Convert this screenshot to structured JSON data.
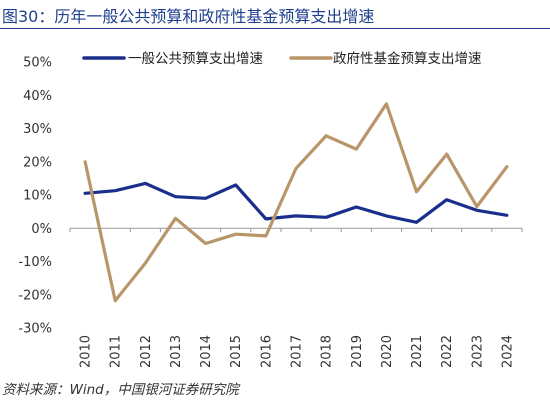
{
  "title": "图30：历年一般公共预算和政府性基金预算支出增速",
  "source": "资料来源：Wind，中国银河证券研究院",
  "chart_data": {
    "type": "line",
    "x": [
      "2010",
      "2011",
      "2012",
      "2013",
      "2014",
      "2015",
      "2016",
      "2017",
      "2018",
      "2019",
      "2020",
      "2021",
      "2022",
      "2023",
      "2024"
    ],
    "series": [
      {
        "name": "一般公共预算支出增速",
        "color": "#1a2f8c",
        "values": [
          10.5,
          11.3,
          13.5,
          9.5,
          9.0,
          13.0,
          2.8,
          3.7,
          3.3,
          6.4,
          3.7,
          1.8,
          8.6,
          5.4,
          3.9
        ]
      },
      {
        "name": "政府性基金预算支出增速",
        "color": "#b8966a",
        "values": [
          20.0,
          -21.8,
          -10.5,
          3.0,
          -4.6,
          -1.8,
          -2.3,
          18.0,
          27.8,
          23.8,
          37.4,
          11.0,
          22.3,
          6.5,
          18.5
        ]
      }
    ],
    "yticks": [
      "50%",
      "40%",
      "30%",
      "20%",
      "10%",
      "0%",
      "-10%",
      "-20%",
      "-30%"
    ],
    "ylim": [
      -30,
      50
    ],
    "legend": "top",
    "grid": false
  }
}
